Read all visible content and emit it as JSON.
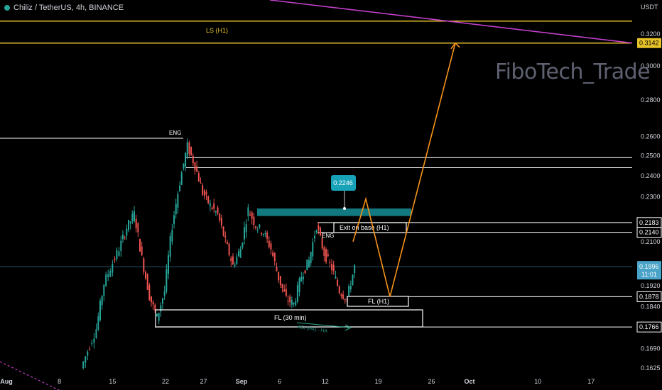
{
  "header": {
    "symbol": "Chiliz / TetherUS, 4h, BINANCE"
  },
  "watermark": "FiboTech_Trade",
  "currency": "USDT",
  "colors": {
    "background": "#000000",
    "up_candle": "#26a69a",
    "down_candle": "#ef5350",
    "fib_line": "#e6c229",
    "trend_line": "#c03fc9",
    "projection": "#f7931a",
    "zone": "#15868f",
    "callout": "#17a2b8",
    "current_price": "#4aa3c8"
  },
  "chart_data": {
    "type": "candlestick",
    "title": "Chiliz / TetherUS, 4h, BINANCE",
    "y_scale": "log",
    "ylim": [
      0.1605,
      0.345
    ],
    "x_ticks": [
      "Aug",
      "8",
      "15",
      "22",
      "27",
      "Sep",
      "6",
      "12",
      "19",
      "26",
      "Oct",
      "10",
      "17"
    ],
    "y_ticks": [
      "0.3200",
      "0.3000",
      "0.2800",
      "0.2600",
      "0.2500",
      "0.2400",
      "0.2300",
      "0.2100",
      "0.1920",
      "0.1840",
      "0.1690",
      "0.1625"
    ],
    "price_labels": [
      {
        "text": "0.3142",
        "value": 0.3142,
        "style": "yellow"
      },
      {
        "text": "0.2183",
        "value": 0.2183,
        "style": "white"
      },
      {
        "text": "0.2140",
        "value": 0.214,
        "style": "white"
      },
      {
        "text": "0.1996",
        "sub": "11:01",
        "value": 0.1996,
        "style": "current"
      },
      {
        "text": "0.1878",
        "value": 0.1878,
        "style": "white"
      },
      {
        "text": "0.1766",
        "value": 0.1766,
        "style": "white"
      }
    ],
    "price_series": [
      {
        "date": "Aug 11",
        "close": 0.1625
      },
      {
        "date": "Aug 13",
        "close": 0.176
      },
      {
        "date": "Aug 14",
        "close": 0.193
      },
      {
        "date": "Aug 16",
        "close": 0.207
      },
      {
        "date": "Aug 17",
        "close": 0.216
      },
      {
        "date": "Aug 18",
        "close": 0.222
      },
      {
        "date": "Aug 19",
        "close": 0.203
      },
      {
        "date": "Aug 20",
        "close": 0.188
      },
      {
        "date": "Aug 21",
        "close": 0.18
      },
      {
        "date": "Aug 22",
        "close": 0.19
      },
      {
        "date": "Aug 23",
        "close": 0.217
      },
      {
        "date": "Aug 24",
        "close": 0.237
      },
      {
        "date": "Aug 25",
        "close": 0.255
      },
      {
        "date": "Aug 26",
        "close": 0.245
      },
      {
        "date": "Aug 27",
        "close": 0.232
      },
      {
        "date": "Aug 28",
        "close": 0.226
      },
      {
        "date": "Aug 29",
        "close": 0.222
      },
      {
        "date": "Aug 30",
        "close": 0.21
      },
      {
        "date": "Aug 31",
        "close": 0.2
      },
      {
        "date": "Sep 1",
        "close": 0.207
      },
      {
        "date": "Sep 2",
        "close": 0.224
      },
      {
        "date": "Sep 3",
        "close": 0.217
      },
      {
        "date": "Sep 4",
        "close": 0.214
      },
      {
        "date": "Sep 5",
        "close": 0.207
      },
      {
        "date": "Sep 6",
        "close": 0.195
      },
      {
        "date": "Sep 7",
        "close": 0.187
      },
      {
        "date": "Sep 8",
        "close": 0.185
      },
      {
        "date": "Sep 9",
        "close": 0.196
      },
      {
        "date": "Sep 10",
        "close": 0.202
      },
      {
        "date": "Sep 11",
        "close": 0.217
      },
      {
        "date": "Sep 12",
        "close": 0.205
      },
      {
        "date": "Sep 13",
        "close": 0.199
      },
      {
        "date": "Sep 14",
        "close": 0.19
      },
      {
        "date": "Sep 15",
        "close": 0.187
      },
      {
        "date": "Sep 16",
        "close": 0.1996
      }
    ],
    "horizontal_lines": [
      {
        "value": 0.3285,
        "color": "yellow"
      },
      {
        "value": 0.3142,
        "color": "yellow"
      },
      {
        "value": 0.259,
        "color": "white"
      },
      {
        "value": 0.249,
        "color": "white"
      },
      {
        "value": 0.244,
        "color": "white"
      },
      {
        "value": 0.2183,
        "color": "white"
      },
      {
        "value": 0.214,
        "color": "white"
      },
      {
        "value": 0.1996,
        "color": "blue"
      },
      {
        "value": 0.1878,
        "color": "white"
      },
      {
        "value": 0.1766,
        "color": "white"
      }
    ],
    "zone": {
      "low": 0.2212,
      "high": 0.2246
    },
    "callout": {
      "text": "0.2246",
      "value": 0.2246
    },
    "annotations": [
      {
        "text": "LS (H1)"
      },
      {
        "text": "ENG"
      },
      {
        "text": "ENG"
      },
      {
        "text": "Exit on base (H1)"
      },
      {
        "text": "FL (H1)"
      },
      {
        "text": "FL (30 min)"
      },
      {
        "text": "RSI (H4) - HA"
      }
    ],
    "projection_path": [
      {
        "date": "Sep 16",
        "value": 0.21
      },
      {
        "date": "Sep 17",
        "value": 0.229
      },
      {
        "date": "Sep 19",
        "value": 0.1878
      },
      {
        "date": "Sep 30",
        "value": 0.3142
      }
    ]
  }
}
